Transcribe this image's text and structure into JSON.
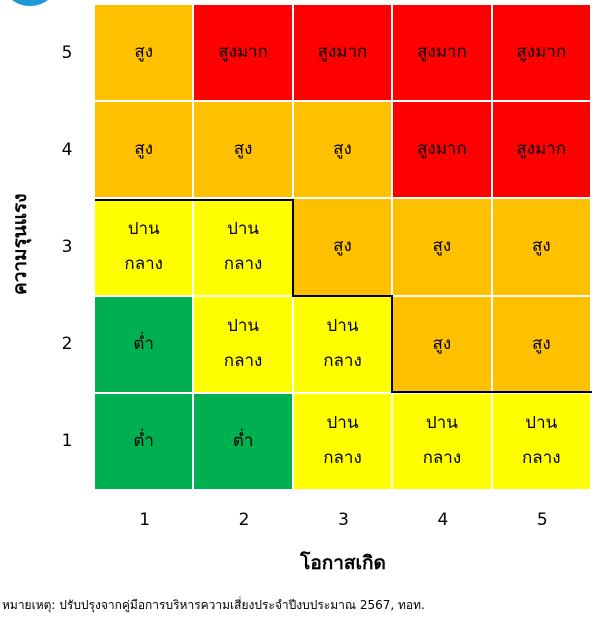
{
  "colors": {
    "green": "#00b050",
    "yellow": "#ffff00",
    "orange": "#ffc000",
    "red": "#ff0000"
  },
  "y_axis": {
    "title": "ความรุนแรง",
    "ticks": [
      "5",
      "4",
      "3",
      "2",
      "1"
    ]
  },
  "x_axis": {
    "title": "โอกาสเกิด",
    "ticks": [
      "1",
      "2",
      "3",
      "4",
      "5"
    ]
  },
  "rows": [
    {
      "severity": "5",
      "cells": [
        {
          "label": "สูง",
          "color": "orange"
        },
        {
          "label": "สูงมาก",
          "color": "red"
        },
        {
          "label": "สูงมาก",
          "color": "red"
        },
        {
          "label": "สูงมาก",
          "color": "red"
        },
        {
          "label": "สูงมาก",
          "color": "red"
        }
      ]
    },
    {
      "severity": "4",
      "cells": [
        {
          "label": "สูง",
          "color": "orange"
        },
        {
          "label": "สูง",
          "color": "orange"
        },
        {
          "label": "สูง",
          "color": "orange"
        },
        {
          "label": "สูงมาก",
          "color": "red"
        },
        {
          "label": "สูงมาก",
          "color": "red"
        }
      ]
    },
    {
      "severity": "3",
      "cells": [
        {
          "label": "ปาน\nกลาง",
          "color": "yellow"
        },
        {
          "label": "ปาน\nกลาง",
          "color": "yellow"
        },
        {
          "label": "สูง",
          "color": "orange"
        },
        {
          "label": "สูง",
          "color": "orange"
        },
        {
          "label": "สูง",
          "color": "orange"
        }
      ]
    },
    {
      "severity": "2",
      "cells": [
        {
          "label": "ต่ำ",
          "color": "green"
        },
        {
          "label": "ปาน\nกลาง",
          "color": "yellow"
        },
        {
          "label": "ปาน\nกลาง",
          "color": "yellow"
        },
        {
          "label": "สูง",
          "color": "orange"
        },
        {
          "label": "สูง",
          "color": "orange"
        }
      ]
    },
    {
      "severity": "1",
      "cells": [
        {
          "label": "ต่ำ",
          "color": "green"
        },
        {
          "label": "ต่ำ",
          "color": "green"
        },
        {
          "label": "ปาน\nกลาง",
          "color": "yellow"
        },
        {
          "label": "ปาน\nกลาง",
          "color": "yellow"
        },
        {
          "label": "ปาน\nกลาง",
          "color": "yellow"
        }
      ]
    }
  ],
  "footnote": "หมายเหตุ: ปรับปรุงจากคู่มือการบริหารความเสี่ยงประจำปีงบประมาณ 2567, ทอท."
}
